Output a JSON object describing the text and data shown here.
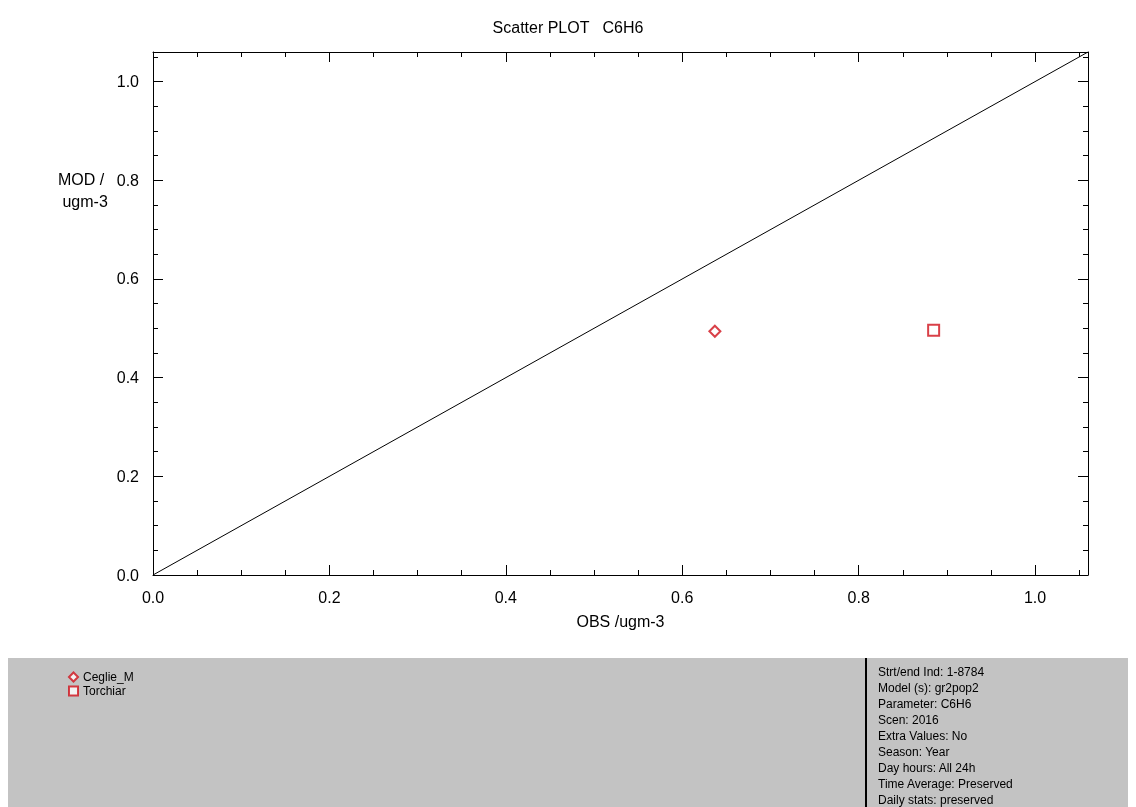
{
  "chart_data": {
    "type": "scatter",
    "title": "Scatter PLOT   C6H6",
    "xlabel": "OBS /ugm-3",
    "ylabel": "MOD / ugm-3",
    "xlim": [
      0,
      1.06
    ],
    "ylim": [
      0,
      1.06
    ],
    "xticks": [
      {
        "value": 0,
        "label": "0.0"
      },
      0.2,
      0.4,
      0.6,
      0.8,
      {
        "value": 1,
        "label": "1.0"
      }
    ],
    "yticks": [
      {
        "value": 0,
        "label": "0.0"
      },
      0.2,
      0.4,
      0.6,
      0.8,
      {
        "value": 1,
        "label": "1.0"
      }
    ],
    "grid": false,
    "legend": "bottom left",
    "series": [
      {
        "name": "Ceglie_M",
        "color": "#d0101a",
        "marker": "diamond",
        "x": [
          0.637
        ],
        "values": [
          0.494
        ]
      },
      {
        "name": "Torchiar",
        "color": "#d0101a",
        "marker": "square",
        "x": [
          0.885
        ],
        "values": [
          0.496
        ]
      },
      {
        "type": "line",
        "color": "#000000",
        "marker": "none",
        "x": [
          0,
          1.06
        ],
        "values": [
          0,
          1.06
        ]
      }
    ],
    "annotations": [
      "Strt/end Ind: 1-8784",
      "Model (s): gr2pop2",
      "Parameter: C6H6",
      "Scen: 2016",
      "Extra Values: No",
      "Season: Year",
      "Day hours: All 24h",
      "Time Average: Preserved",
      "Daily stats: preserved"
    ]
  }
}
